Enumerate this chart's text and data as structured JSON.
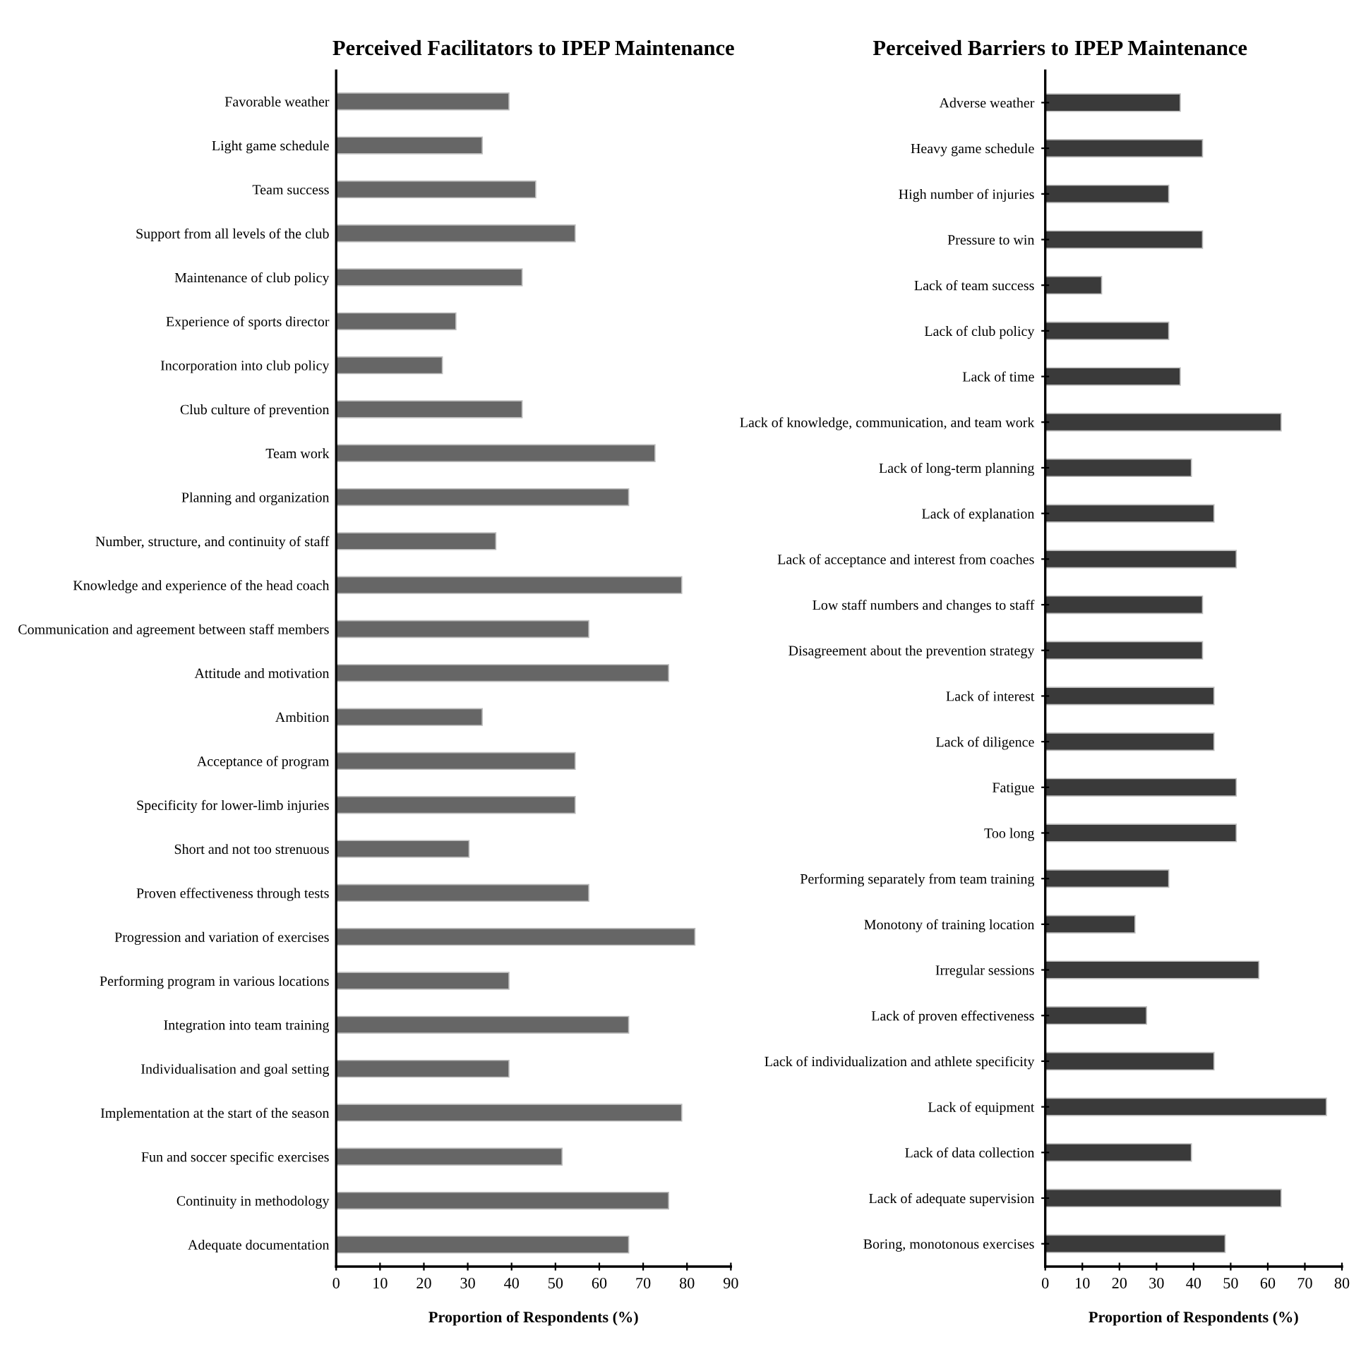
{
  "chart_data": [
    {
      "type": "bar",
      "orientation": "horizontal",
      "title": "Perceived Facilitators to IPEP Maintenance",
      "xlabel": "Proportion of Respondents (%)",
      "categories": [
        "Favorable weather",
        "Light game schedule",
        "Team success",
        "Support from all levels of the club",
        "Maintenance of club policy",
        "Experience of sports director",
        "Incorporation into club policy",
        "Club culture of prevention",
        "Team work",
        "Planning and organization",
        "Number, structure, and continuity of staff",
        "Knowledge and experience of the head coach",
        "Communication and agreement between staff members",
        "Attitude and motivation",
        "Ambition",
        "Acceptance of program",
        "Specificity for lower-limb injuries",
        "Short and not too strenuous",
        "Proven effectiveness through tests",
        "Progression and variation of exercises",
        "Performing program in various locations",
        "Integration into team training",
        "Individualisation and goal setting",
        "Implementation at the start of the season",
        "Fun and soccer specific exercises",
        "Continuity in methodology",
        "Adequate documentation"
      ],
      "values": [
        39.4,
        33.3,
        45.5,
        54.5,
        42.4,
        27.3,
        24.2,
        42.4,
        72.7,
        66.7,
        36.4,
        78.8,
        57.6,
        75.8,
        33.3,
        54.5,
        54.5,
        30.3,
        57.6,
        81.8,
        39.4,
        66.7,
        39.4,
        78.8,
        51.5,
        75.8,
        66.7
      ],
      "color": "#666666",
      "xlim": [
        0,
        90
      ],
      "xticks": [
        0,
        10,
        20,
        30,
        40,
        50,
        60,
        70,
        80,
        90
      ],
      "grid": false,
      "legend": false
    },
    {
      "type": "bar",
      "orientation": "horizontal",
      "title": "Perceived Barriers to IPEP Maintenance",
      "xlabel": "Proportion of Respondents (%)",
      "categories": [
        "Adverse weather",
        "Heavy game schedule",
        "High number of injuries",
        "Pressure to win",
        "Lack of team success",
        "Lack of club policy",
        "Lack of time",
        "Lack of knowledge, communication, and team work",
        "Lack of long-term planning",
        "Lack of explanation",
        "Lack of acceptance and interest from coaches",
        "Low staff numbers and changes to staff",
        "Disagreement about the prevention strategy",
        "Lack of interest",
        "Lack of diligence",
        "Fatigue",
        "Too long",
        "Performing separately from team training",
        "Monotony of training location",
        "Irregular sessions",
        "Lack of proven effectiveness",
        "Lack of individualization and athlete specificity",
        "Lack of equipment",
        "Lack of data collection",
        "Lack of adequate supervision",
        "Boring, monotonous exercises"
      ],
      "values": [
        36.4,
        42.4,
        33.3,
        42.4,
        15.2,
        33.3,
        36.4,
        63.6,
        39.4,
        45.5,
        51.5,
        42.4,
        42.4,
        45.5,
        45.5,
        51.5,
        51.5,
        33.3,
        24.2,
        57.6,
        27.3,
        45.5,
        75.8,
        39.4,
        63.6,
        48.5
      ],
      "color": "#3a3a3a",
      "xlim": [
        0,
        80
      ],
      "xticks": [
        0,
        10,
        20,
        30,
        40,
        50,
        60,
        70,
        80
      ],
      "grid": false,
      "legend": false
    }
  ]
}
